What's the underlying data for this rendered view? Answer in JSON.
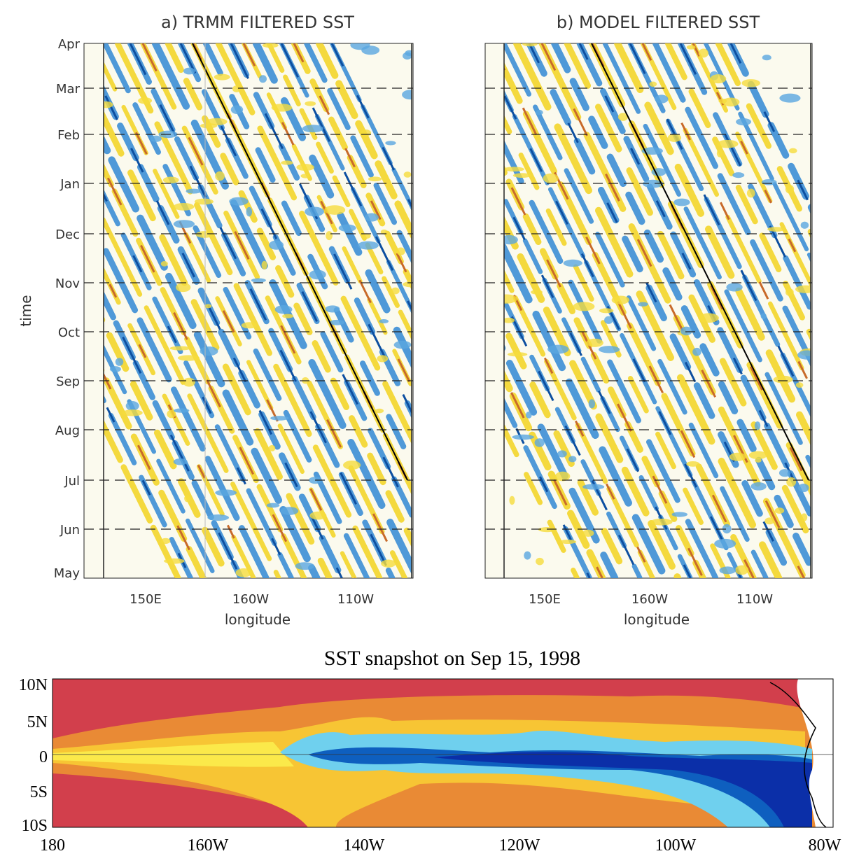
{
  "panels": [
    {
      "title": "a) TRMM FILTERED SST",
      "ylabel": "time",
      "yticks": [
        "Apr",
        "Mar",
        "Feb",
        "Jan",
        "Dec",
        "Nov",
        "Oct",
        "Sep",
        "Aug",
        "Jul",
        "Jun",
        "May"
      ],
      "xticks": [
        "150E",
        "160W",
        "110W"
      ],
      "xlabel": "longitude"
    },
    {
      "title": "b) MODEL FILTERED SST",
      "xticks": [
        "150E",
        "160W",
        "110W"
      ],
      "xlabel": "longitude"
    }
  ],
  "snapshot": {
    "title": "SST snapshot on Sep 15, 1998",
    "yticks": [
      "10N",
      "5N",
      "0",
      "5S",
      "10S"
    ],
    "xticks": [
      "180",
      "160W",
      "140W",
      "120W",
      "100W",
      "80W"
    ]
  }
}
